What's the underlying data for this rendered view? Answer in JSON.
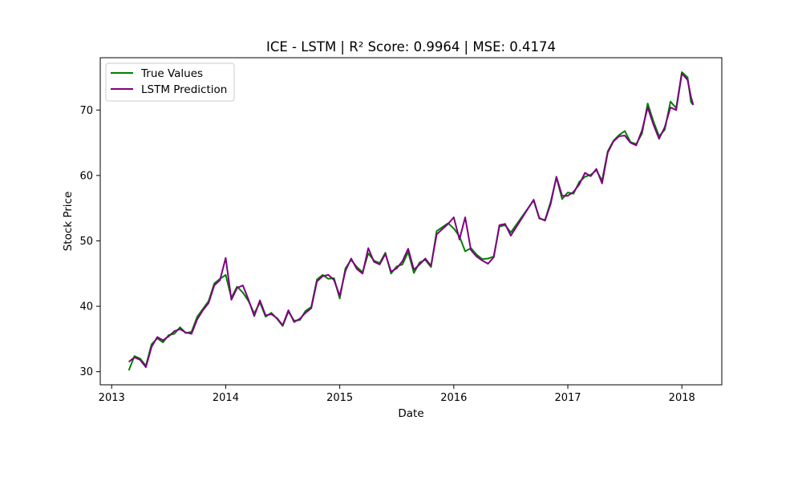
{
  "chart_data": {
    "type": "line",
    "title": "ICE - LSTM | R² Score: 0.9964 | MSE: 0.4174",
    "xlabel": "Date",
    "ylabel": "Stock Price",
    "xlim": [
      2012.9,
      2018.35
    ],
    "ylim": [
      28.0,
      78.0
    ],
    "xticks": [
      2013,
      2014,
      2015,
      2016,
      2017,
      2018
    ],
    "xtick_labels": [
      "2013",
      "2014",
      "2015",
      "2016",
      "2017",
      "2018"
    ],
    "yticks": [
      30,
      40,
      50,
      60,
      70
    ],
    "ytick_labels": [
      "30",
      "40",
      "50",
      "60",
      "70"
    ],
    "grid": false,
    "legend_position": "top-left",
    "series": [
      {
        "name": "True Values",
        "color": "#008000",
        "x": [
          2013.15,
          2013.2,
          2013.25,
          2013.3,
          2013.35,
          2013.4,
          2013.45,
          2013.5,
          2013.55,
          2013.6,
          2013.65,
          2013.7,
          2013.75,
          2013.8,
          2013.85,
          2013.9,
          2013.95,
          2014.0,
          2014.05,
          2014.1,
          2014.15,
          2014.2,
          2014.25,
          2014.3,
          2014.35,
          2014.4,
          2014.45,
          2014.5,
          2014.55,
          2014.6,
          2014.65,
          2014.7,
          2014.75,
          2014.8,
          2014.85,
          2014.9,
          2014.95,
          2015.0,
          2015.05,
          2015.1,
          2015.15,
          2015.2,
          2015.25,
          2015.3,
          2015.35,
          2015.4,
          2015.45,
          2015.5,
          2015.55,
          2015.6,
          2015.65,
          2015.7,
          2015.75,
          2015.8,
          2015.85,
          2015.9,
          2015.95,
          2016.0,
          2016.05,
          2016.1,
          2016.15,
          2016.2,
          2016.25,
          2016.3,
          2016.35,
          2016.4,
          2016.45,
          2016.5,
          2016.7,
          2016.75,
          2016.8,
          2016.85,
          2016.9,
          2016.95,
          2017.0,
          2017.05,
          2017.1,
          2017.15,
          2017.2,
          2017.25,
          2017.3,
          2017.35,
          2017.4,
          2017.45,
          2017.5,
          2017.55,
          2017.6,
          2017.65,
          2017.7,
          2017.75,
          2017.8,
          2017.85,
          2017.9,
          2017.95,
          2018.0,
          2018.05,
          2018.08,
          2018.1
        ],
        "values": [
          30.2,
          32.4,
          32.0,
          30.9,
          34.2,
          35.1,
          34.5,
          35.6,
          35.8,
          36.8,
          35.9,
          36.1,
          38.4,
          39.6,
          40.8,
          43.5,
          44.2,
          44.8,
          41.3,
          43.0,
          42.1,
          40.8,
          38.9,
          40.6,
          38.4,
          39.0,
          38.1,
          37.0,
          39.2,
          37.8,
          37.9,
          39.3,
          39.9,
          44.1,
          44.8,
          44.2,
          44.3,
          41.2,
          45.8,
          47.1,
          46.0,
          45.2,
          48.1,
          47.0,
          46.6,
          48.2,
          45.0,
          46.1,
          46.4,
          48.3,
          45.1,
          46.7,
          47.1,
          46.0,
          51.5,
          52.1,
          52.7,
          51.9,
          50.7,
          48.4,
          48.9,
          47.9,
          47.2,
          47.3,
          47.6,
          52.2,
          52.4,
          51.3,
          56.2,
          53.4,
          53.2,
          56.0,
          59.7,
          56.4,
          57.4,
          57.2,
          59.0,
          59.8,
          60.1,
          60.8,
          59.2,
          63.7,
          65.3,
          66.2,
          66.8,
          65.1,
          64.8,
          66.4,
          71.0,
          68.3,
          66.0,
          67.0,
          71.3,
          70.3,
          75.8,
          75.0,
          71.2,
          70.8
        ]
      },
      {
        "name": "LSTM Prediction",
        "color": "#800080",
        "x": [
          2013.15,
          2013.2,
          2013.25,
          2013.3,
          2013.35,
          2013.4,
          2013.45,
          2013.5,
          2013.55,
          2013.6,
          2013.65,
          2013.7,
          2013.75,
          2013.8,
          2013.85,
          2013.9,
          2013.95,
          2014.0,
          2014.05,
          2014.1,
          2014.15,
          2014.2,
          2014.25,
          2014.3,
          2014.35,
          2014.4,
          2014.45,
          2014.5,
          2014.55,
          2014.6,
          2014.65,
          2014.7,
          2014.75,
          2014.8,
          2014.85,
          2014.9,
          2014.95,
          2015.0,
          2015.05,
          2015.1,
          2015.15,
          2015.2,
          2015.25,
          2015.3,
          2015.35,
          2015.4,
          2015.45,
          2015.5,
          2015.55,
          2015.6,
          2015.65,
          2015.7,
          2015.75,
          2015.8,
          2015.85,
          2015.9,
          2015.95,
          2016.0,
          2016.05,
          2016.1,
          2016.15,
          2016.2,
          2016.25,
          2016.3,
          2016.35,
          2016.4,
          2016.45,
          2016.5,
          2016.7,
          2016.75,
          2016.8,
          2016.85,
          2016.9,
          2016.95,
          2017.0,
          2017.05,
          2017.1,
          2017.15,
          2017.2,
          2017.25,
          2017.3,
          2017.35,
          2017.4,
          2017.45,
          2017.5,
          2017.55,
          2017.6,
          2017.65,
          2017.7,
          2017.75,
          2017.8,
          2017.85,
          2017.9,
          2017.95,
          2018.0,
          2018.05,
          2018.08,
          2018.1
        ],
        "values": [
          31.5,
          32.2,
          31.8,
          30.7,
          33.8,
          35.3,
          34.8,
          35.4,
          36.2,
          36.5,
          36.0,
          35.8,
          38.0,
          39.4,
          40.5,
          43.2,
          44.0,
          47.4,
          41.0,
          42.8,
          43.2,
          41.0,
          38.5,
          40.9,
          38.6,
          38.8,
          38.2,
          37.1,
          39.4,
          37.6,
          38.1,
          39.0,
          39.7,
          43.8,
          44.6,
          44.8,
          44.0,
          41.6,
          45.4,
          47.3,
          45.7,
          45.0,
          48.9,
          46.8,
          46.4,
          48.0,
          45.3,
          45.8,
          46.9,
          48.8,
          45.6,
          46.4,
          47.3,
          46.2,
          51.0,
          51.8,
          52.6,
          53.6,
          50.2,
          53.6,
          48.6,
          47.6,
          47.0,
          46.5,
          47.5,
          52.4,
          52.6,
          50.8,
          56.3,
          53.5,
          53.1,
          55.7,
          59.8,
          56.9,
          56.9,
          57.5,
          58.6,
          60.4,
          59.9,
          61.0,
          58.8,
          63.5,
          65.2,
          66.0,
          66.1,
          65.0,
          64.6,
          66.9,
          70.4,
          67.8,
          65.6,
          67.4,
          70.4,
          70.0,
          75.6,
          74.6,
          72.0,
          70.8
        ]
      }
    ]
  }
}
